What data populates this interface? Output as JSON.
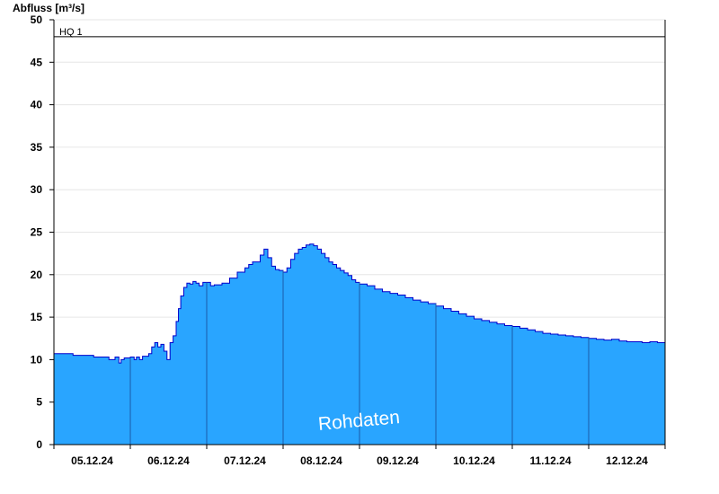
{
  "chart_data": {
    "type": "area",
    "title": "",
    "ylabel": "Abfluss [m³/s]",
    "xlabel": "",
    "ylim": [
      0,
      50
    ],
    "yticks": [
      0,
      5,
      10,
      15,
      20,
      25,
      30,
      35,
      40,
      45,
      50
    ],
    "categories": [
      "05.12.24",
      "06.12.24",
      "07.12.24",
      "08.12.24",
      "09.12.24",
      "10.12.24",
      "11.12.24",
      "12.12.24"
    ],
    "xrange_days": [
      0,
      8
    ],
    "grid": "horizontal",
    "reference_line": {
      "label": "HQ 1",
      "value": 48,
      "color": "#000000"
    },
    "watermark": "Rohdaten",
    "colors": {
      "fill": "#29a5ff",
      "line": "#0000cc",
      "axis": "#000000",
      "grid": "#e6e6e6"
    },
    "series": [
      {
        "x": [
          0.0,
          0.2,
          0.25,
          0.45,
          0.52,
          0.65,
          0.72,
          0.8,
          0.85,
          0.88,
          0.92,
          0.96,
          1.0,
          1.05,
          1.08,
          1.12,
          1.16,
          1.2,
          1.24,
          1.28,
          1.32,
          1.36,
          1.4,
          1.44,
          1.48,
          1.52,
          1.56,
          1.6,
          1.63,
          1.66,
          1.7,
          1.74,
          1.78,
          1.82,
          1.86,
          1.9,
          1.95,
          2.0,
          2.05,
          2.1,
          2.2,
          2.3,
          2.4,
          2.5,
          2.55,
          2.6,
          2.65,
          2.7,
          2.75,
          2.8,
          2.85,
          2.9,
          2.95,
          3.0,
          3.05,
          3.1,
          3.15,
          3.2,
          3.25,
          3.3,
          3.35,
          3.4,
          3.45,
          3.5,
          3.55,
          3.6,
          3.65,
          3.7,
          3.75,
          3.8,
          3.85,
          3.9,
          3.95,
          4.0,
          4.1,
          4.2,
          4.3,
          4.4,
          4.5,
          4.6,
          4.7,
          4.8,
          4.9,
          5.0,
          5.1,
          5.2,
          5.3,
          5.4,
          5.5,
          5.6,
          5.7,
          5.8,
          5.9,
          6.0,
          6.1,
          6.2,
          6.3,
          6.4,
          6.5,
          6.6,
          6.7,
          6.8,
          6.9,
          7.0,
          7.1,
          7.2,
          7.3,
          7.4,
          7.5,
          7.6,
          7.7,
          7.8,
          7.9,
          8.0
        ],
        "y": [
          10.7,
          10.7,
          10.5,
          10.5,
          10.3,
          10.3,
          10.0,
          10.3,
          9.6,
          10.0,
          10.2,
          10.2,
          10.3,
          10.0,
          10.3,
          10.0,
          10.4,
          10.4,
          10.7,
          11.5,
          12.0,
          11.5,
          11.8,
          11.0,
          10.0,
          12.0,
          12.8,
          14.5,
          16.0,
          17.5,
          18.5,
          19.0,
          18.9,
          19.2,
          19.0,
          18.7,
          19.1,
          19.1,
          18.7,
          18.8,
          19.0,
          19.6,
          20.3,
          20.8,
          21.2,
          21.5,
          21.5,
          22.3,
          23.0,
          22.0,
          21.0,
          20.6,
          20.5,
          20.3,
          20.8,
          21.8,
          22.5,
          23.0,
          23.2,
          23.5,
          23.6,
          23.4,
          23.0,
          22.5,
          22.0,
          21.5,
          21.2,
          20.8,
          20.5,
          20.2,
          19.9,
          19.4,
          19.1,
          18.9,
          18.7,
          18.3,
          18.0,
          17.8,
          17.6,
          17.3,
          17.0,
          16.8,
          16.6,
          16.3,
          16.0,
          15.7,
          15.4,
          15.1,
          14.8,
          14.6,
          14.4,
          14.2,
          14.0,
          13.9,
          13.7,
          13.5,
          13.3,
          13.1,
          13.0,
          12.9,
          12.8,
          12.7,
          12.6,
          12.5,
          12.4,
          12.3,
          12.4,
          12.2,
          12.1,
          12.1,
          12.0,
          12.1,
          12.0,
          12.0
        ]
      }
    ]
  }
}
